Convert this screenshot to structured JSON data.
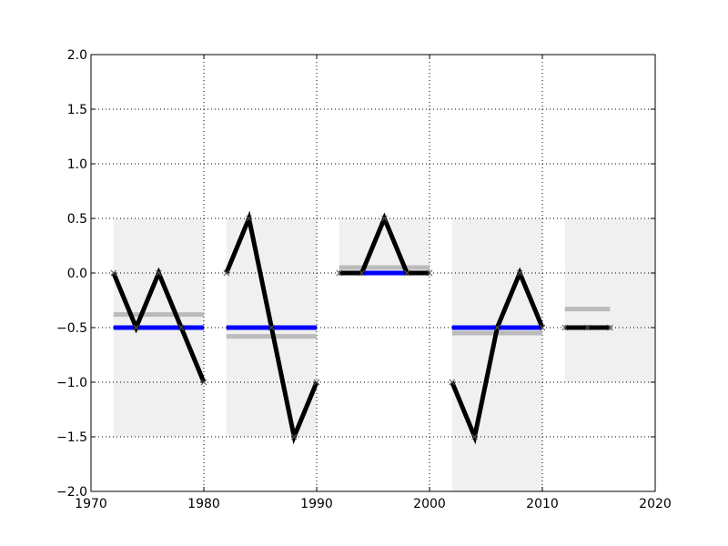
{
  "chart_data": {
    "type": "line",
    "title": "",
    "xlabel": "",
    "ylabel": "",
    "xlim": [
      1970,
      2020
    ],
    "ylim": [
      -2.0,
      2.0
    ],
    "x_ticks": [
      1970,
      1980,
      1990,
      2000,
      2010,
      2020
    ],
    "y_ticks": [
      -2.0,
      -1.5,
      -1.0,
      -0.5,
      0.0,
      0.5,
      1.0,
      1.5,
      2.0
    ],
    "x_tick_labels": [
      "1970",
      "1980",
      "1990",
      "2000",
      "2010",
      "2020"
    ],
    "y_tick_labels": [
      "−2.0",
      "−1.5",
      "−1.0",
      "−0.5",
      "0.0",
      "0.5",
      "1.0",
      "1.5",
      "2.0"
    ],
    "grid": true,
    "legend": false,
    "colors": {
      "line": "#000000",
      "mean": "#0000ff",
      "median": "#bbbbbb",
      "range_band": "#f0f0f0"
    },
    "range_bands": [
      {
        "x": [
          1972,
          1980
        ],
        "y": [
          -1.5,
          0.5
        ]
      },
      {
        "x": [
          1982,
          1990
        ],
        "y": [
          -1.5,
          0.5
        ]
      },
      {
        "x": [
          1992,
          2000
        ],
        "y": [
          0.0,
          0.5
        ]
      },
      {
        "x": [
          2002,
          2010
        ],
        "y": [
          -2.0,
          0.5
        ]
      },
      {
        "x": [
          2012,
          2020
        ],
        "y": [
          -1.0,
          0.5
        ]
      }
    ],
    "series": [
      {
        "x": [
          1972,
          1974,
          1976,
          1978,
          1980
        ],
        "y": [
          0.0,
          -0.5,
          0.0,
          -0.5,
          -1.0
        ]
      },
      {
        "x": [
          1982,
          1984,
          1986,
          1988,
          1990
        ],
        "y": [
          0.0,
          0.5,
          -0.5,
          -1.5,
          -1.0
        ]
      },
      {
        "x": [
          1992,
          1994,
          1996,
          1998,
          2000
        ],
        "y": [
          0.0,
          0.0,
          0.5,
          0.0,
          0.0
        ]
      },
      {
        "x": [
          2002,
          2004,
          2006,
          2008,
          2010
        ],
        "y": [
          -1.0,
          -1.5,
          -0.5,
          0.0,
          -0.5
        ]
      },
      {
        "x": [
          2012,
          2014,
          2016
        ],
        "y": [
          -0.5,
          -0.5,
          -0.5
        ]
      }
    ],
    "mean_lines": [
      {
        "x": [
          1972,
          1980
        ],
        "y": -0.5
      },
      {
        "x": [
          1982,
          1990
        ],
        "y": -0.5
      },
      {
        "x": [
          1992,
          2000
        ],
        "y": 0.0
      },
      {
        "x": [
          2002,
          2010
        ],
        "y": -0.5
      },
      {
        "x": [
          2012,
          2016
        ],
        "y": -0.5
      }
    ],
    "median_lines": [
      {
        "x": [
          1972,
          1980
        ],
        "y": -0.38
      },
      {
        "x": [
          1982,
          1990
        ],
        "y": -0.58
      },
      {
        "x": [
          1992,
          2000
        ],
        "y": 0.05
      },
      {
        "x": [
          2002,
          2010
        ],
        "y": -0.55
      },
      {
        "x": [
          2012,
          2016
        ],
        "y": -0.33
      }
    ]
  }
}
